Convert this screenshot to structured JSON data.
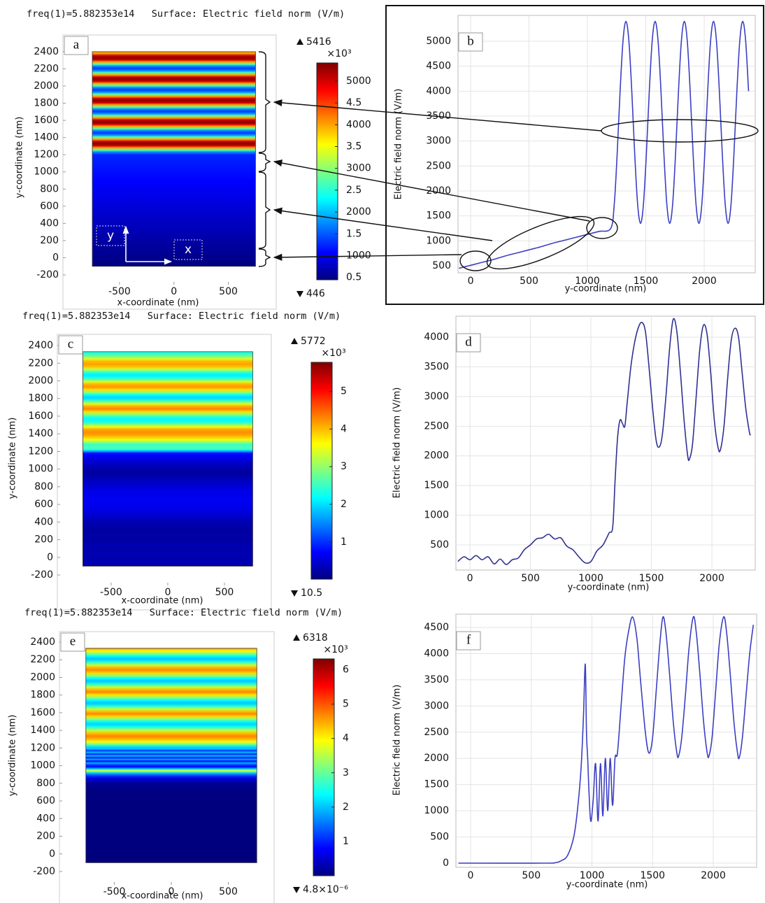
{
  "chart_data": [
    {
      "type": "surface",
      "label": "a",
      "title": "freq(1)=5.882353e14   Surface: Electric field norm (V/m)",
      "xlabel": "x-coordinate (nm)",
      "ylabel": "y-coordinate (nm)",
      "xlim": [
        -1020,
        940
      ],
      "ylim": [
        -257,
        2595
      ],
      "xticks": [
        -500,
        0,
        500
      ],
      "yticks": [
        -200,
        0,
        200,
        400,
        600,
        800,
        1000,
        1200,
        1400,
        1600,
        1800,
        2000,
        2200,
        2400
      ],
      "xdomain": [
        -750,
        750
      ],
      "ydomain": [
        -100,
        2400
      ],
      "clim": [
        446,
        5416
      ],
      "cticks": [
        {
          "value": 500,
          "label": "0.5"
        },
        1000,
        {
          "value": 1500,
          "label": "1.5"
        },
        2000,
        {
          "value": 2500,
          "label": "2.5"
        },
        3000,
        {
          "value": 3500,
          "label": "3.5"
        },
        4000,
        {
          "value": 4500,
          "label": "4.5"
        },
        5000
      ],
      "cunit": "×10³",
      "annotations": [
        "y",
        "x"
      ]
    },
    {
      "type": "line",
      "label": "b",
      "xlabel": "y-coordinate (nm)",
      "ylabel": "Electric field norm (V/m)",
      "color": "#3b3fc2",
      "grid": true,
      "xlim": [
        -108,
        2437
      ],
      "ylim": [
        360,
        5519
      ],
      "xticks": [
        0,
        500,
        1000,
        1500,
        2000
      ],
      "yticks": [
        500,
        1000,
        1500,
        2000,
        2500,
        3000,
        3500,
        4000,
        4500,
        5000
      ],
      "x": [
        -100,
        0,
        100,
        200,
        300,
        400,
        500,
        600,
        700,
        800,
        900,
        1000,
        1100,
        1200,
        1230,
        1255,
        1280,
        1305,
        1330,
        1355,
        1380,
        1405,
        1430,
        1455,
        1480,
        1505,
        1530,
        1555,
        1580,
        1605,
        1630,
        1655,
        1680,
        1705,
        1730,
        1755,
        1780,
        1805,
        1830,
        1855,
        1880,
        1905,
        1930,
        1955,
        1980,
        2005,
        2030,
        2055,
        2080,
        2105,
        2130,
        2155,
        2180,
        2205,
        2230,
        2255,
        2280,
        2305,
        2330,
        2355,
        2380
      ],
      "values": [
        450,
        510,
        570,
        630,
        700,
        760,
        820,
        880,
        950,
        1010,
        1070,
        1130,
        1190,
        1250,
        1737,
        2749,
        4001,
        5013,
        5400,
        5013,
        4001,
        2749,
        1737,
        1350,
        1737,
        2749,
        4001,
        5013,
        5400,
        5013,
        4001,
        2749,
        1737,
        1350,
        1737,
        2749,
        4001,
        5013,
        5400,
        5013,
        4001,
        2749,
        1737,
        1350,
        1737,
        2749,
        4001,
        5013,
        5400,
        5013,
        4001,
        2749,
        1737,
        1350,
        1737,
        2749,
        4001,
        5013,
        5400,
        5013,
        4001
      ]
    },
    {
      "type": "surface",
      "label": "c",
      "title": "freq(1)=5.882353e14   Surface: Electric field norm (V/m)",
      "xlabel": "x-coordinate (nm)",
      "ylabel": "y-coordinate (nm)",
      "xlim": [
        -975,
        914
      ],
      "ylim": [
        -263,
        2527
      ],
      "xticks": [
        -500,
        0,
        500
      ],
      "yticks": [
        -200,
        0,
        200,
        400,
        600,
        800,
        1000,
        1200,
        1400,
        1600,
        1800,
        2000,
        2200,
        2400
      ],
      "xdomain": [
        -750,
        750
      ],
      "ydomain": [
        -100,
        2330
      ],
      "clim": [
        10.5,
        5772
      ],
      "cticks": [
        {
          "value": 1000,
          "label": "1"
        },
        {
          "value": 2000,
          "label": "2"
        },
        {
          "value": 3000,
          "label": "3"
        },
        {
          "value": 4000,
          "label": "4"
        },
        {
          "value": 5000,
          "label": "5"
        }
      ],
      "cunit": "×10³"
    },
    {
      "type": "line",
      "label": "d",
      "xlabel": "y-coordinate (nm)",
      "ylabel": "Electric field norm (V/m)",
      "color": "#2e3192",
      "grid": true,
      "xlim": [
        -116,
        2358
      ],
      "ylim": [
        76,
        4354
      ],
      "xticks": [
        0,
        500,
        1000,
        1500,
        2000
      ],
      "yticks": [
        500,
        1000,
        1500,
        2000,
        2500,
        3000,
        3500,
        4000
      ],
      "x": [
        -100,
        -50,
        0,
        50,
        100,
        150,
        200,
        250,
        300,
        350,
        400,
        450,
        500,
        550,
        600,
        650,
        700,
        750,
        800,
        850,
        900,
        950,
        1000,
        1050,
        1100,
        1150,
        1180,
        1200,
        1220,
        1240,
        1260,
        1280,
        1300,
        1330,
        1360,
        1390,
        1420,
        1450,
        1480,
        1510,
        1540,
        1565,
        1590,
        1620,
        1650,
        1680,
        1710,
        1740,
        1770,
        1800,
        1815,
        1840,
        1870,
        1900,
        1930,
        1960,
        1990,
        2020,
        2050,
        2070,
        2100,
        2130,
        2160,
        2190,
        2220,
        2250,
        2280,
        2310,
        2320
      ],
      "values": [
        220,
        300,
        250,
        320,
        250,
        300,
        180,
        260,
        170,
        250,
        280,
        420,
        500,
        600,
        620,
        680,
        600,
        620,
        480,
        420,
        300,
        200,
        220,
        400,
        500,
        700,
        800,
        1600,
        2300,
        2600,
        2550,
        2500,
        2900,
        3500,
        3900,
        4150,
        4250,
        4100,
        3500,
        2800,
        2250,
        2150,
        2350,
        3000,
        3800,
        4300,
        4100,
        3400,
        2600,
        2000,
        1950,
        2200,
        3000,
        3800,
        4200,
        4050,
        3400,
        2600,
        2150,
        2100,
        2500,
        3300,
        3950,
        4150,
        4000,
        3400,
        2800,
        2400,
        2350
      ]
    },
    {
      "type": "surface",
      "label": "e",
      "title": "freq(1)=5.882353e14   Surface: Electric field norm (V/m)",
      "xlabel": "x-coordinate (nm)",
      "ylabel": "y-coordinate (nm)",
      "xlim": [
        -982,
        902
      ],
      "ylim": [
        -295,
        2519
      ],
      "xticks": [
        -500,
        0,
        500
      ],
      "yticks": [
        -200,
        0,
        200,
        400,
        600,
        800,
        1000,
        1200,
        1400,
        1600,
        1800,
        2000,
        2200,
        2400
      ],
      "xdomain": [
        -750,
        750
      ],
      "ydomain": [
        -100,
        2330
      ],
      "clim": [
        {
          "value": 4.8e-06,
          "label": "4.8×10⁻⁶"
        },
        6318
      ],
      "cticks": [
        {
          "value": 1000,
          "label": "1"
        },
        {
          "value": 2000,
          "label": "2"
        },
        {
          "value": 3000,
          "label": "3"
        },
        {
          "value": 4000,
          "label": "4"
        },
        {
          "value": 5000,
          "label": "5"
        },
        {
          "value": 6000,
          "label": "6"
        }
      ],
      "cunit": "×10³"
    },
    {
      "type": "line",
      "label": "f",
      "xlabel": "y-coordinate (nm)",
      "ylabel": "Electric field norm (V/m)",
      "color": "#3b3fc2",
      "grid": true,
      "xlim": [
        -121,
        2357
      ],
      "ylim": [
        -80,
        4754
      ],
      "xticks": [
        0,
        500,
        1000,
        1500,
        2000
      ],
      "yticks": [
        0,
        500,
        1000,
        1500,
        2000,
        2500,
        3000,
        3500,
        4000,
        4500
      ],
      "x": [
        -100,
        600,
        700,
        750,
        800,
        850,
        880,
        910,
        930,
        945,
        955,
        965,
        975,
        990,
        1010,
        1030,
        1050,
        1070,
        1090,
        1110,
        1130,
        1150,
        1170,
        1190,
        1210,
        1240,
        1270,
        1300,
        1335,
        1370,
        1400,
        1440,
        1470,
        1500,
        1530,
        1560,
        1585,
        1610,
        1640,
        1670,
        1700,
        1715,
        1740,
        1770,
        1800,
        1835,
        1860,
        1890,
        1920,
        1950,
        1965,
        1990,
        2020,
        2050,
        2085,
        2110,
        2140,
        2170,
        2200,
        2215,
        2240,
        2270,
        2300,
        2330
      ],
      "values": [
        0,
        0,
        10,
        50,
        150,
        500,
        1000,
        1800,
        2800,
        3800,
        2500,
        2000,
        1400,
        800,
        1200,
        1900,
        800,
        1900,
        900,
        2000,
        1000,
        2000,
        1100,
        2000,
        2100,
        3000,
        3900,
        4400,
        4700,
        4300,
        3500,
        2500,
        2100,
        2400,
        3300,
        4200,
        4700,
        4400,
        3600,
        2700,
        2100,
        2050,
        2400,
        3200,
        4100,
        4700,
        4400,
        3600,
        2700,
        2100,
        2050,
        2400,
        3300,
        4200,
        4700,
        4400,
        3600,
        2700,
        2100,
        2020,
        2400,
        3200,
        4000,
        4550
      ]
    }
  ]
}
